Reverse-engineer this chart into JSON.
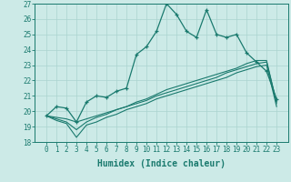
{
  "xlabel": "Humidex (Indice chaleur)",
  "x_values": [
    0,
    1,
    2,
    3,
    4,
    5,
    6,
    7,
    8,
    9,
    10,
    11,
    12,
    13,
    14,
    15,
    16,
    17,
    18,
    19,
    20,
    21,
    22,
    23
  ],
  "line1": [
    19.7,
    20.3,
    20.2,
    19.3,
    20.6,
    21.0,
    20.9,
    21.3,
    21.5,
    23.7,
    24.2,
    25.2,
    27.0,
    26.3,
    25.2,
    24.8,
    26.6,
    25.0,
    24.8,
    25.0,
    23.8,
    23.2,
    22.6,
    20.8
  ],
  "line2": [
    19.7,
    19.6,
    19.5,
    19.3,
    19.5,
    19.7,
    19.9,
    20.1,
    20.3,
    20.5,
    20.7,
    21.0,
    21.2,
    21.4,
    21.6,
    21.8,
    22.0,
    22.2,
    22.5,
    22.7,
    22.9,
    23.1,
    23.2,
    20.6
  ],
  "line3": [
    19.7,
    19.5,
    19.3,
    18.8,
    19.3,
    19.6,
    19.8,
    20.1,
    20.3,
    20.6,
    20.8,
    21.1,
    21.4,
    21.6,
    21.8,
    22.0,
    22.2,
    22.4,
    22.6,
    22.8,
    23.1,
    23.3,
    23.3,
    20.5
  ],
  "line4": [
    19.7,
    19.4,
    19.2,
    18.3,
    19.1,
    19.3,
    19.6,
    19.8,
    20.1,
    20.3,
    20.5,
    20.8,
    21.0,
    21.2,
    21.4,
    21.6,
    21.8,
    22.0,
    22.2,
    22.5,
    22.7,
    22.9,
    23.0,
    20.3
  ],
  "ylim": [
    18,
    27
  ],
  "yticks": [
    18,
    19,
    20,
    21,
    22,
    23,
    24,
    25,
    26,
    27
  ],
  "color": "#1a7a6e",
  "bg_color": "#cceae7",
  "grid_color": "#aad4cf",
  "figsize": [
    3.2,
    2.0
  ],
  "dpi": 100,
  "tick_fontsize": 5.5,
  "xlabel_fontsize": 7
}
